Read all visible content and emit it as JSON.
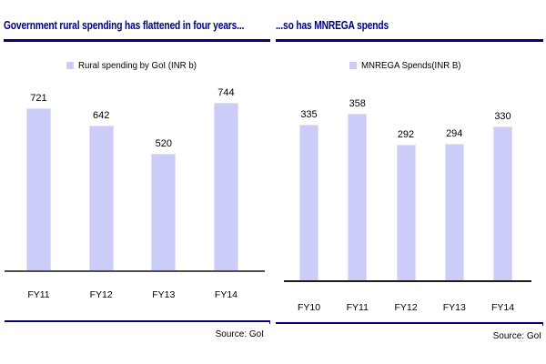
{
  "accent_color": "#000080",
  "title_color": "#00007E",
  "bar_color": "#CCCCF8",
  "chart_data": [
    {
      "type": "bar",
      "title": "Government rural spending has flattened in four years...",
      "legend": "Rural spending by GoI (INR b)",
      "categories": [
        "FY11",
        "FY12",
        "FY13",
        "FY14"
      ],
      "values": [
        721,
        642,
        520,
        744
      ],
      "ylim": [
        0,
        800
      ],
      "xlabel": "",
      "ylabel": "",
      "grid": "off",
      "legend_position": "top-center",
      "data_labels": "above-bars",
      "source": "Source: GoI",
      "bar_color": "#CCCCF8"
    },
    {
      "type": "bar",
      "title": "...so has MNREGA spends",
      "legend": "MNREGA Spends(INR B)",
      "categories": [
        "FY10",
        "FY11",
        "FY12",
        "FY13",
        "FY14"
      ],
      "values": [
        335,
        358,
        292,
        294,
        330
      ],
      "ylim": [
        0,
        400
      ],
      "xlabel": "",
      "ylabel": "",
      "grid": "off",
      "legend_position": "top-center",
      "data_labels": "above-bars",
      "source": "Source: GoI",
      "bar_color": "#CCCCF8"
    }
  ]
}
